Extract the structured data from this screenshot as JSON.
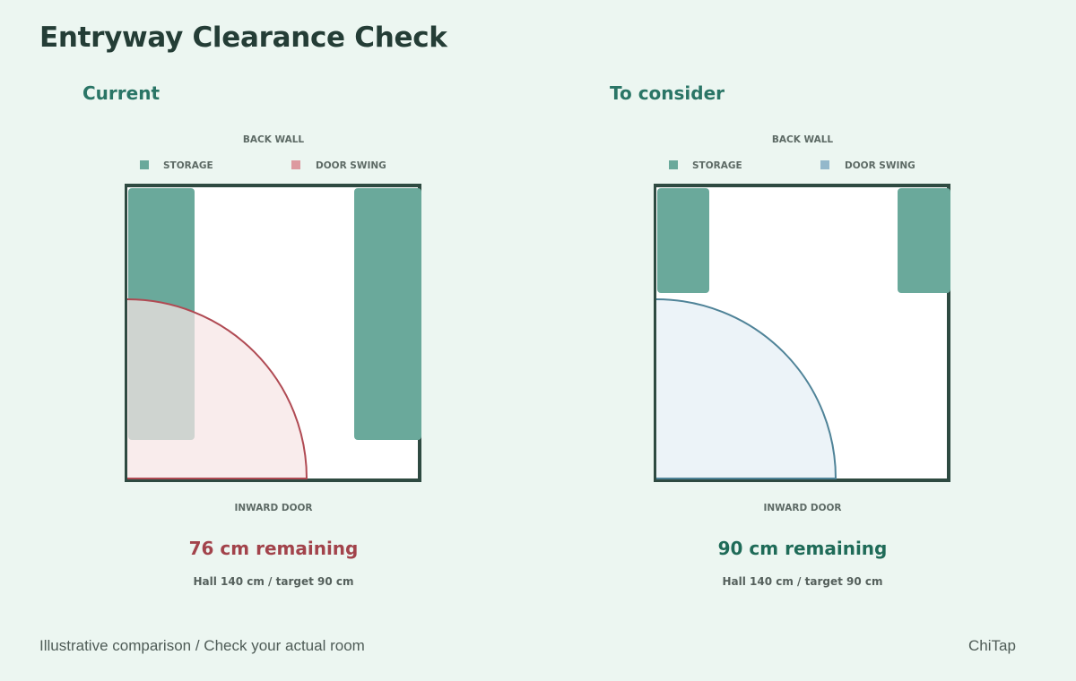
{
  "title": "Entryway Clearance Check",
  "panels": {
    "current": {
      "heading": "Current",
      "top_wall_label": "BACK WALL",
      "bottom_wall_label": "INWARD DOOR",
      "legend": {
        "storage": "STORAGE",
        "door_swing": "DOOR SWING"
      },
      "remaining": "76 cm remaining",
      "detail": "Hall 140 cm / target 90 cm",
      "colors": {
        "storage": "#6aa99b",
        "swing_fill": "#f7e4e5",
        "swing_stroke": "#b04a53",
        "swing_legend": "#dd9aa0",
        "remaining_text": "#a2434b"
      }
    },
    "consider": {
      "heading": "To consider",
      "top_wall_label": "BACK WALL",
      "bottom_wall_label": "INWARD DOOR",
      "legend": {
        "storage": "STORAGE",
        "door_swing": "DOOR SWING"
      },
      "remaining": "90 cm remaining",
      "detail": "Hall 140 cm / target 90 cm",
      "colors": {
        "storage": "#6aa99b",
        "swing_fill": "#ecf3f8",
        "swing_stroke": "#4f8398",
        "swing_legend": "#93b8cb",
        "remaining_text": "#1f6b58"
      }
    }
  },
  "footer": {
    "note": "Illustrative comparison / Check your actual room",
    "brand": "ChiTap"
  }
}
